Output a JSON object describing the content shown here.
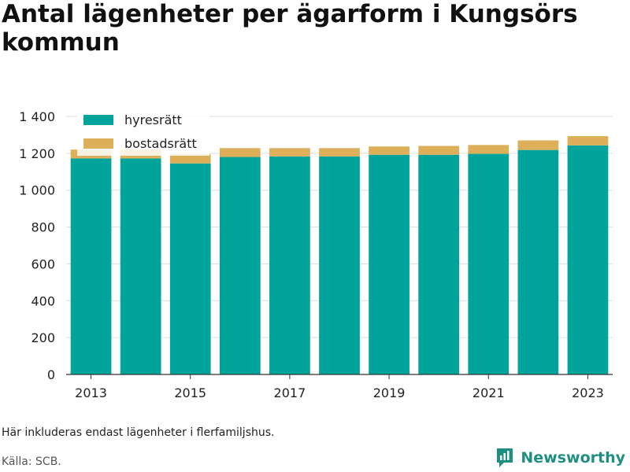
{
  "title": "Antal lägenheter per ägarform i Kungsörs kommun",
  "note": "Här inkluderas endast lägenheter i flerfamiljshus.",
  "source": "Källa: SCB.",
  "brand": {
    "name": "Newsworthy",
    "icon": "newsworthy-logo-icon"
  },
  "colors": {
    "hyresratt": "#00a49a",
    "bostadsratt": "#dcaf58",
    "grid": "#dddddd",
    "axis": "#333333"
  },
  "chart_data": {
    "type": "bar",
    "stacked": true,
    "categories": [
      "2013",
      "2014",
      "2015",
      "2016",
      "2017",
      "2018",
      "2019",
      "2020",
      "2021",
      "2022",
      "2023"
    ],
    "series": [
      {
        "name": "hyresrätt",
        "values": [
          1172,
          1172,
          1145,
          1180,
          1183,
          1183,
          1192,
          1192,
          1197,
          1218,
          1243
        ]
      },
      {
        "name": "bostadsrätt",
        "values": [
          48,
          48,
          50,
          48,
          45,
          45,
          45,
          48,
          48,
          52,
          50
        ]
      }
    ],
    "ylim": [
      0,
      1400
    ],
    "yticks": [
      0,
      200,
      400,
      600,
      800,
      1000,
      1200,
      1400
    ],
    "ytick_labels": [
      "0",
      "200",
      "400",
      "600",
      "800",
      "1 000",
      "1 200",
      "1 400"
    ],
    "xtick_labels": [
      "2013",
      "2015",
      "2017",
      "2019",
      "2021",
      "2023"
    ],
    "grid": true,
    "legend_position": "top-left"
  }
}
